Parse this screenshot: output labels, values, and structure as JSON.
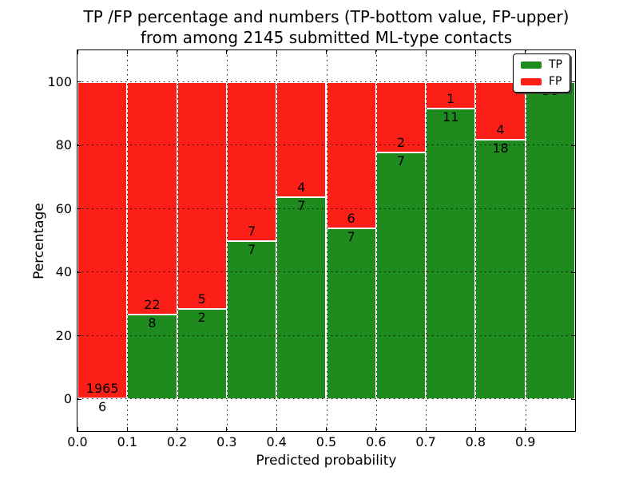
{
  "chart_data": {
    "type": "bar",
    "variant": "stacked-percentage-histogram",
    "title_lines": [
      "TP /FP percentage and numbers (TP-bottom value, FP-upper)",
      "from among 2145 submitted ML-type contacts"
    ],
    "total_submitted": 2145,
    "xlabel": "Predicted probability",
    "ylabel": "Percentage",
    "bin_edges": [
      0.0,
      0.1,
      0.2,
      0.3,
      0.4,
      0.5,
      0.6,
      0.7,
      0.8,
      0.9,
      1.0
    ],
    "categories": [
      "0.0-0.1",
      "0.1-0.2",
      "0.2-0.3",
      "0.3-0.4",
      "0.4-0.5",
      "0.5-0.6",
      "0.6-0.7",
      "0.7-0.8",
      "0.8-0.9",
      "0.9-1.0"
    ],
    "series": [
      {
        "name": "TP",
        "color": "#1f8b1f",
        "values": [
          6,
          8,
          2,
          7,
          7,
          7,
          7,
          11,
          18,
          56
        ]
      },
      {
        "name": "FP",
        "color": "#fb1f17",
        "values": [
          1965,
          22,
          5,
          7,
          4,
          6,
          2,
          1,
          4,
          0
        ]
      }
    ],
    "tp_percent_of_bin": [
      0.3,
      26.7,
      28.6,
      50.0,
      63.6,
      53.8,
      77.8,
      91.7,
      81.8,
      100.0
    ],
    "x_tick_labels": [
      "0.0",
      "0.1",
      "0.2",
      "0.3",
      "0.4",
      "0.5",
      "0.6",
      "0.7",
      "0.8",
      "0.9"
    ],
    "y_ticks": [
      0,
      20,
      40,
      60,
      80,
      100
    ],
    "ylim": [
      -10,
      110
    ],
    "grid": {
      "style": "dotted",
      "color": "#000000"
    },
    "legend": {
      "position": "upper-right",
      "entries": [
        "TP",
        "FP"
      ]
    }
  }
}
